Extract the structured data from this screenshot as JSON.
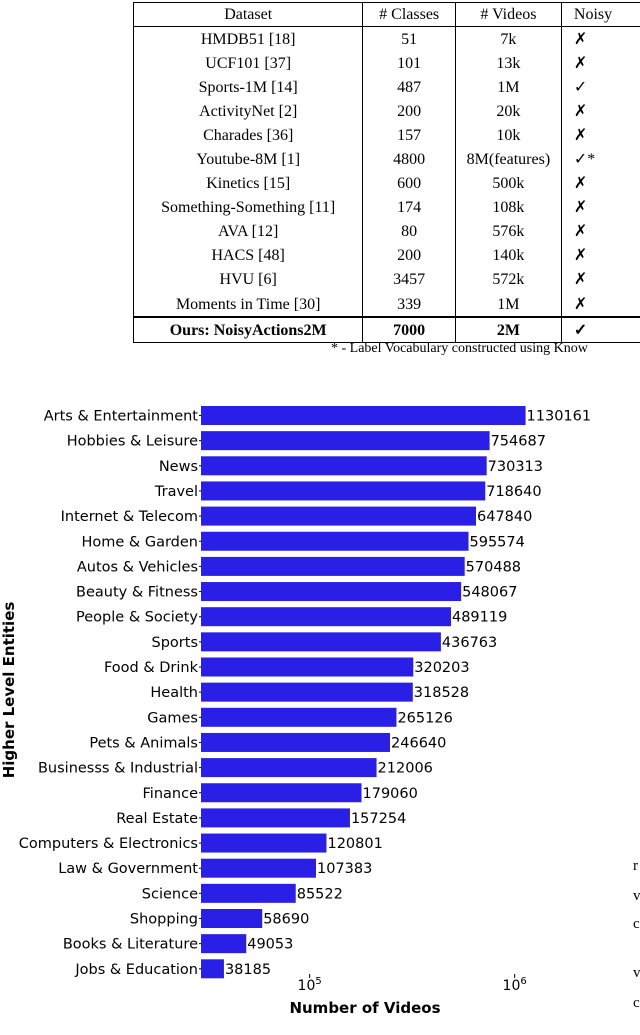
{
  "table": {
    "headers": [
      "Dataset",
      "# Classes",
      "# Videos",
      "Noisy"
    ],
    "rows": [
      {
        "dataset": "HMDB51 [18]",
        "classes": "51",
        "videos": "7k",
        "noisy": "✗"
      },
      {
        "dataset": "UCF101 [37]",
        "classes": "101",
        "videos": "13k",
        "noisy": "✗"
      },
      {
        "dataset": "Sports-1M [14]",
        "classes": "487",
        "videos": "1M",
        "noisy": "✓"
      },
      {
        "dataset": "ActivityNet [2]",
        "classes": "200",
        "videos": "20k",
        "noisy": "✗"
      },
      {
        "dataset": "Charades [36]",
        "classes": "157",
        "videos": "10k",
        "noisy": "✗"
      },
      {
        "dataset": "Youtube-8M [1]",
        "classes": "4800",
        "videos": "8M(features)",
        "noisy": "✓*"
      },
      {
        "dataset": "Kinetics [15]",
        "classes": "600",
        "videos": "500k",
        "noisy": "✗"
      },
      {
        "dataset": "Something-Something [11]",
        "classes": "174",
        "videos": "108k",
        "noisy": "✗"
      },
      {
        "dataset": "AVA [12]",
        "classes": "80",
        "videos": "576k",
        "noisy": "✗"
      },
      {
        "dataset": "HACS [48]",
        "classes": "200",
        "videos": "140k",
        "noisy": "✗"
      },
      {
        "dataset": "HVU [6]",
        "classes": "3457",
        "videos": "572k",
        "noisy": "✗"
      },
      {
        "dataset": "Moments in Time [30]",
        "classes": "339",
        "videos": "1M",
        "noisy": "✗"
      }
    ],
    "ours": {
      "dataset": "Ours: NoisyActions2M",
      "classes": "7000",
      "videos": "2M",
      "noisy": "✓"
    },
    "footnote": "* - Label Vocabulary constructed using Know"
  },
  "chart_data": {
    "type": "bar",
    "orientation": "horizontal",
    "xscale": "log",
    "xlabel": "Number of Videos",
    "ylabel": "Higher Level Entities",
    "xticks": [
      "10^5",
      "10^6"
    ],
    "color": "#2a1fe6",
    "categories": [
      "Arts & Entertainment",
      "Hobbies & Leisure",
      "News",
      "Travel",
      "Internet & Telecom",
      "Home & Garden",
      "Autos & Vehicles",
      "Beauty & Fitness",
      "People & Society",
      "Sports",
      "Food & Drink",
      "Health",
      "Games",
      "Pets & Animals",
      "Businesss & Industrial",
      "Finance",
      "Real Estate",
      "Computers & Electronics",
      "Law & Government",
      "Science",
      "Shopping",
      "Books & Literature",
      "Jobs & Education"
    ],
    "values": [
      1130161,
      754687,
      730313,
      718640,
      647840,
      595574,
      570488,
      548067,
      489119,
      436763,
      320203,
      318528,
      265126,
      246640,
      212006,
      179060,
      157254,
      120801,
      107383,
      85522,
      58690,
      49053,
      38185
    ]
  },
  "margin_fragments": [
    "r",
    "v",
    "c",
    "v",
    "c"
  ]
}
